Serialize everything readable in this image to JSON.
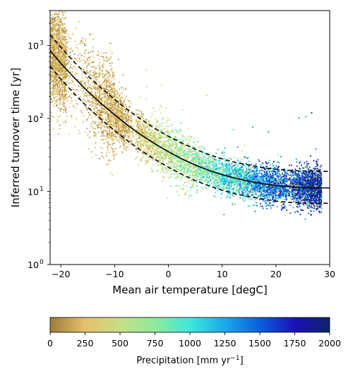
{
  "chart_data": {
    "type": "scatter",
    "xlabel": "Mean air temperature [degC]",
    "ylabel": "Inferred turnover time [yr]",
    "xlim": [
      -22,
      30
    ],
    "ylim": [
      1,
      3000
    ],
    "y_scale": "log",
    "grid": false,
    "x_ticks": [
      -20,
      -10,
      0,
      10,
      20,
      30
    ],
    "y_ticks": [
      1,
      10,
      100,
      1000
    ],
    "y_tick_labels": [
      {
        "base": "10",
        "exp": "0"
      },
      {
        "base": "10",
        "exp": "1"
      },
      {
        "base": "10",
        "exp": "2"
      },
      {
        "base": "10",
        "exp": "3"
      }
    ],
    "fit_curve": {
      "name": "",
      "x": [
        -22,
        -20,
        -17.5,
        -15,
        -12.5,
        -10,
        -7.5,
        -5,
        -2.5,
        0,
        2.5,
        5,
        7.5,
        10,
        12.5,
        15,
        17.5,
        20,
        22.5,
        25,
        27.5,
        30
      ],
      "y": [
        850,
        570,
        360,
        235,
        160,
        112,
        80,
        59,
        45,
        35,
        28,
        23,
        19.5,
        17,
        15.2,
        13.8,
        12.8,
        12.1,
        11.6,
        11.3,
        11.2,
        11.2
      ]
    },
    "upper_bound": {
      "name": "",
      "x": [
        -22,
        -20,
        -17.5,
        -15,
        -12.5,
        -10,
        -7.5,
        -5,
        -2.5,
        0,
        2.5,
        5,
        7.5,
        10,
        12.5,
        15,
        17.5,
        20,
        22.5,
        25,
        27.5,
        30
      ],
      "y": [
        1400,
        940,
        590,
        385,
        260,
        182,
        130,
        96,
        73,
        57,
        46,
        38,
        32,
        28,
        25,
        23,
        21.2,
        20.2,
        19.5,
        19.1,
        18.9,
        18.9
      ]
    },
    "lower_bound": {
      "name": "",
      "x": [
        -22,
        -20,
        -17.5,
        -15,
        -12.5,
        -10,
        -7.5,
        -5,
        -2.5,
        0,
        2.5,
        5,
        7.5,
        10,
        12.5,
        15,
        17.5,
        20,
        22.5,
        25,
        27.5,
        30
      ],
      "y": [
        520,
        345,
        218,
        142,
        97,
        68,
        49,
        36,
        27.5,
        21.5,
        17.2,
        14.1,
        12,
        10.4,
        9.3,
        8.5,
        7.9,
        7.4,
        7.1,
        6.95,
        6.9,
        6.9
      ]
    },
    "scatter_description": {
      "n_points": 9000,
      "color_variable": "Precipitation",
      "sampling_seed": 7
    },
    "colorbar": {
      "label_main": "Precipitation [mm yr",
      "label_exp": "−1",
      "label_end": "]",
      "min": 0,
      "max": 2000,
      "ticks": [
        "0",
        "250",
        "500",
        "750",
        "1000",
        "1250",
        "1500",
        "1750",
        "2000"
      ],
      "colormap": "gist_earth_r-like",
      "stops": [
        {
          "v": 0,
          "color": "#9c7a3c"
        },
        {
          "v": 250,
          "color": "#e8c06a"
        },
        {
          "v": 500,
          "color": "#c5df86"
        },
        {
          "v": 750,
          "color": "#8eea9a"
        },
        {
          "v": 1000,
          "color": "#3de8dc"
        },
        {
          "v": 1250,
          "color": "#1aa8ec"
        },
        {
          "v": 1500,
          "color": "#0a5fdc"
        },
        {
          "v": 1750,
          "color": "#1a10b8"
        },
        {
          "v": 2000,
          "color": "#10246a"
        }
      ]
    }
  }
}
